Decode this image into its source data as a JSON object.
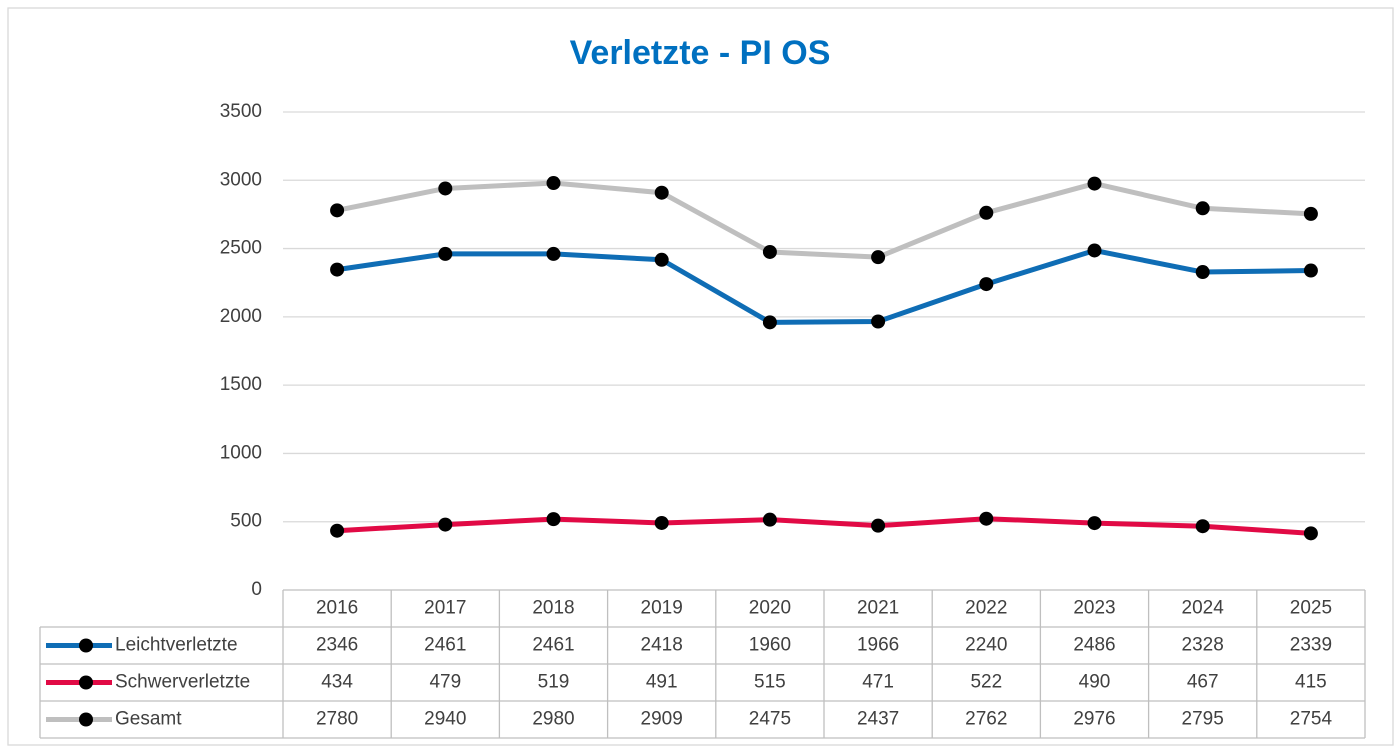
{
  "chart_data": {
    "type": "line",
    "title": "Verletzte - PI OS",
    "categories": [
      "2016",
      "2017",
      "2018",
      "2019",
      "2020",
      "2021",
      "2022",
      "2023",
      "2024",
      "2025"
    ],
    "series": [
      {
        "name": "Leichtverletzte",
        "color": "#0f6db5",
        "values": [
          2346,
          2461,
          2461,
          2418,
          1960,
          1966,
          2240,
          2486,
          2328,
          2339
        ]
      },
      {
        "name": "Schwerverletzte",
        "color": "#e10a45",
        "values": [
          434,
          479,
          519,
          491,
          515,
          471,
          522,
          490,
          467,
          415
        ]
      },
      {
        "name": "Gesamt",
        "color": "#bfbfbf",
        "values": [
          2780,
          2940,
          2980,
          2909,
          2475,
          2437,
          2762,
          2976,
          2795,
          2754
        ]
      }
    ],
    "marker_color": "#000000",
    "ylim": [
      0,
      3500
    ],
    "yticks": [
      0,
      500,
      1000,
      1500,
      2000,
      2500,
      3000,
      3500
    ],
    "grid": true,
    "data_table": true
  }
}
